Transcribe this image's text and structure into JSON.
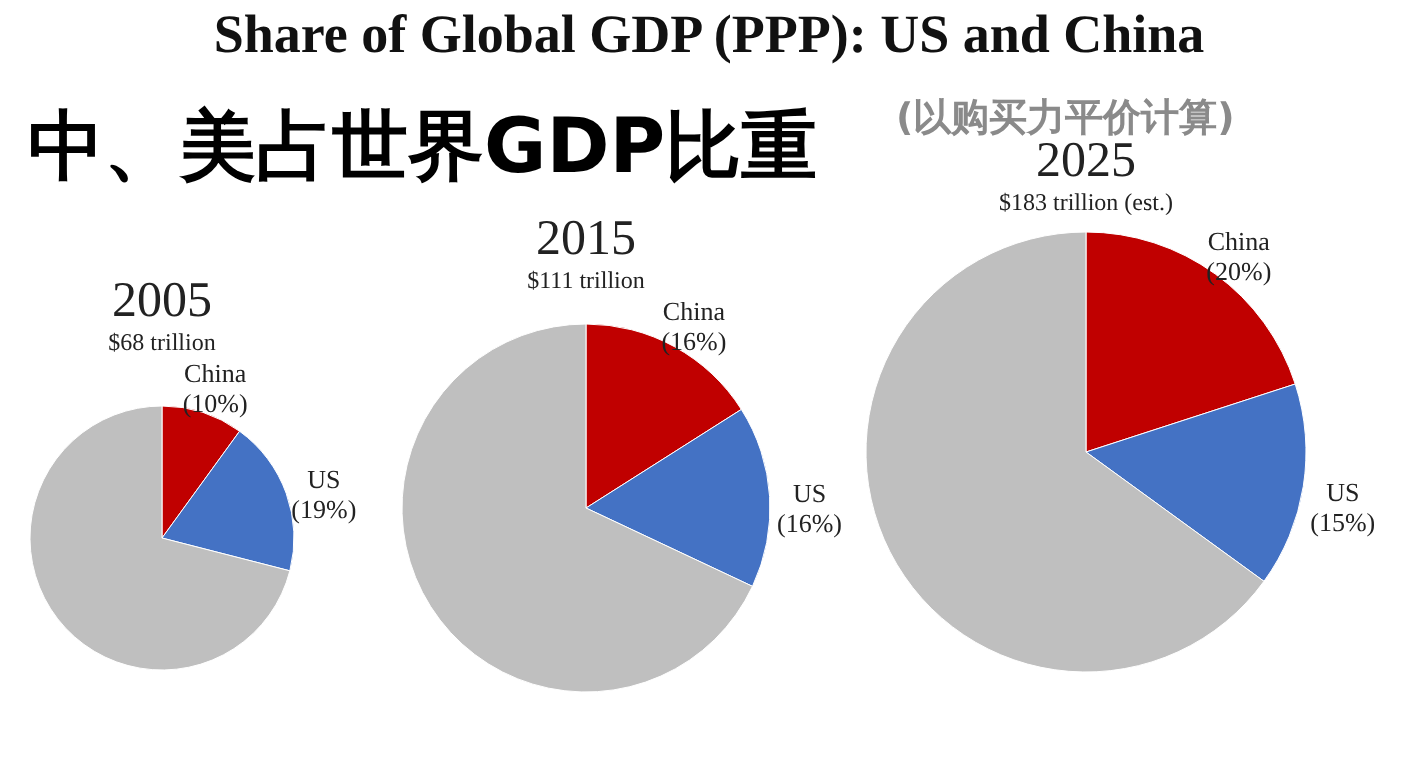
{
  "chart_data": [
    {
      "type": "pie",
      "title": "2005",
      "subtitle": "$68 trillion",
      "categories": [
        "China",
        "US",
        null
      ],
      "values": [
        10,
        19,
        71
      ],
      "value_labels": [
        "(10%)",
        "(19%)",
        null
      ],
      "colors": [
        "#c00000",
        "#4472c4",
        "#bfbfbf"
      ],
      "legend": false,
      "annotations": [
        "Share of Global GDP (PPP): US and China",
        "中、美占世界GDP比重",
        "(以购买力平价计算)"
      ]
    },
    {
      "type": "pie",
      "title": "2015",
      "subtitle": "$111 trillion",
      "categories": [
        "China",
        "US",
        null
      ],
      "values": [
        16,
        16,
        68
      ],
      "value_labels": [
        "(16%)",
        "(16%)",
        null
      ],
      "colors": [
        "#c00000",
        "#4472c4",
        "#bfbfbf"
      ],
      "legend": false
    },
    {
      "type": "pie",
      "title": "2025",
      "subtitle": "$183 trillion (est.)",
      "categories": [
        "China",
        "US",
        null
      ],
      "values": [
        20,
        15,
        65
      ],
      "value_labels": [
        "(20%)",
        "(15%)",
        null
      ],
      "colors": [
        "#c00000",
        "#4472c4",
        "#bfbfbf"
      ],
      "legend": false
    }
  ]
}
